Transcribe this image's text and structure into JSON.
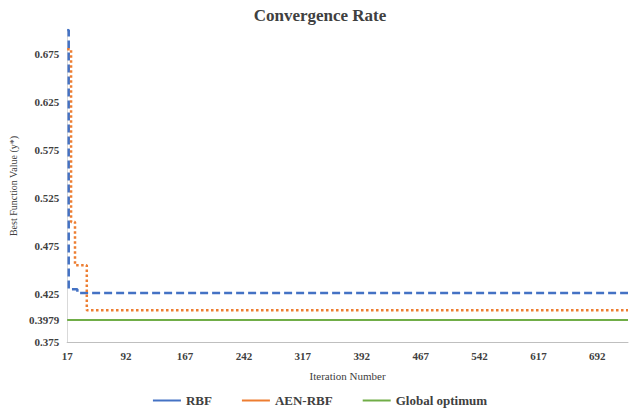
{
  "chart_data": {
    "type": "line",
    "title": "Convergence Rate",
    "x_label": "Iteration Number",
    "y_label": "Best Function Value (y*)",
    "x": [
      17,
      19,
      22,
      27,
      30,
      42,
      731
    ],
    "series": [
      {
        "name": "RBF",
        "color": "#4472c4",
        "line_style": "dashed",
        "marker": "none",
        "values": [
          0.7,
          0.43,
          0.43,
          0.43,
          0.426,
          0.426,
          0.426
        ]
      },
      {
        "name": "AEN-RBF",
        "color": "#ed7d31",
        "line_style": "dotted",
        "marker": "none",
        "values": [
          0.68,
          0.68,
          0.5,
          0.455,
          0.455,
          0.408,
          0.408
        ]
      },
      {
        "name": "Global optimum",
        "color": "#70ad47",
        "line_style": "solid",
        "marker": "none",
        "values": [
          0.3979,
          0.3979,
          0.3979,
          0.3979,
          0.3979,
          0.3979,
          0.3979
        ]
      }
    ],
    "xlim": [
      17,
      731
    ],
    "xticks": [
      17,
      92,
      167,
      242,
      317,
      392,
      467,
      542,
      617,
      692
    ],
    "ylim": [
      0.375,
      0.7
    ],
    "yticks": [
      0.375,
      0.3979,
      0.425,
      0.475,
      0.525,
      0.575,
      0.625,
      0.675
    ],
    "grid": false,
    "legend": "bottom"
  }
}
